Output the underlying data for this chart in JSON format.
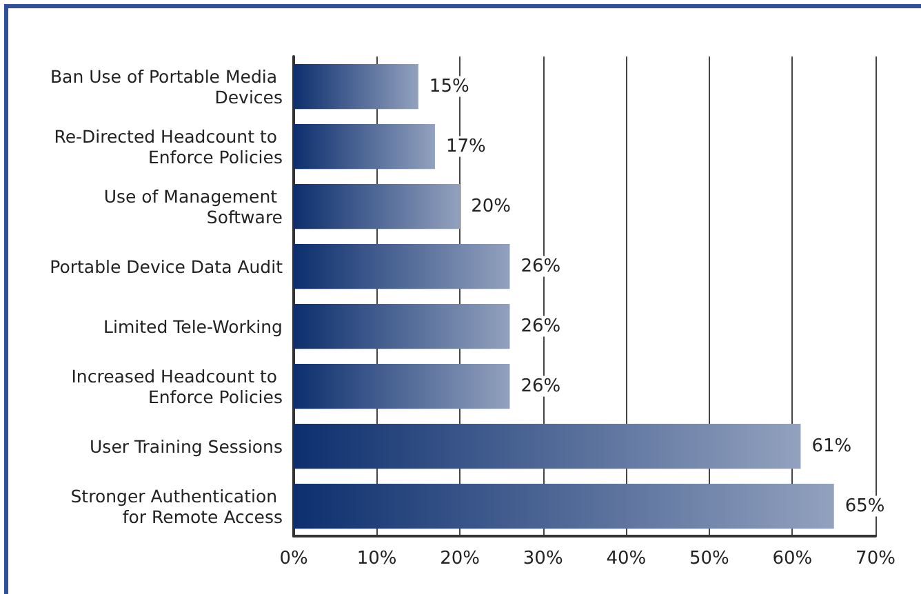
{
  "chart_data": {
    "type": "bar",
    "orientation": "horizontal",
    "categories": [
      "Ban Use of Portable Media Devices",
      "Re-Directed Headcount to Enforce Policies",
      "Use of Management Software",
      "Portable Device Data Audit",
      "Limited Tele-Working",
      "Increased Headcount to Enforce Policies",
      "User Training Sessions",
      "Stronger Authentication for Remote Access"
    ],
    "values": [
      15,
      17,
      20,
      26,
      26,
      26,
      61,
      65
    ],
    "value_labels": [
      "15%",
      "17%",
      "20%",
      "26%",
      "26%",
      "26%",
      "61%",
      "65%"
    ],
    "color": "#0d2f6e",
    "xlim": [
      0,
      70
    ],
    "xticks": [
      {
        "value": 0,
        "label": "0%"
      },
      {
        "value": 10,
        "label": "10%"
      },
      {
        "value": 20,
        "label": "20%"
      },
      {
        "value": 30,
        "label": "30%"
      },
      {
        "value": 40,
        "label": "40%"
      },
      {
        "value": 50,
        "label": "50%"
      },
      {
        "value": 60,
        "label": "60%"
      },
      {
        "value": 70,
        "label": "70%"
      }
    ],
    "grid": "x"
  }
}
